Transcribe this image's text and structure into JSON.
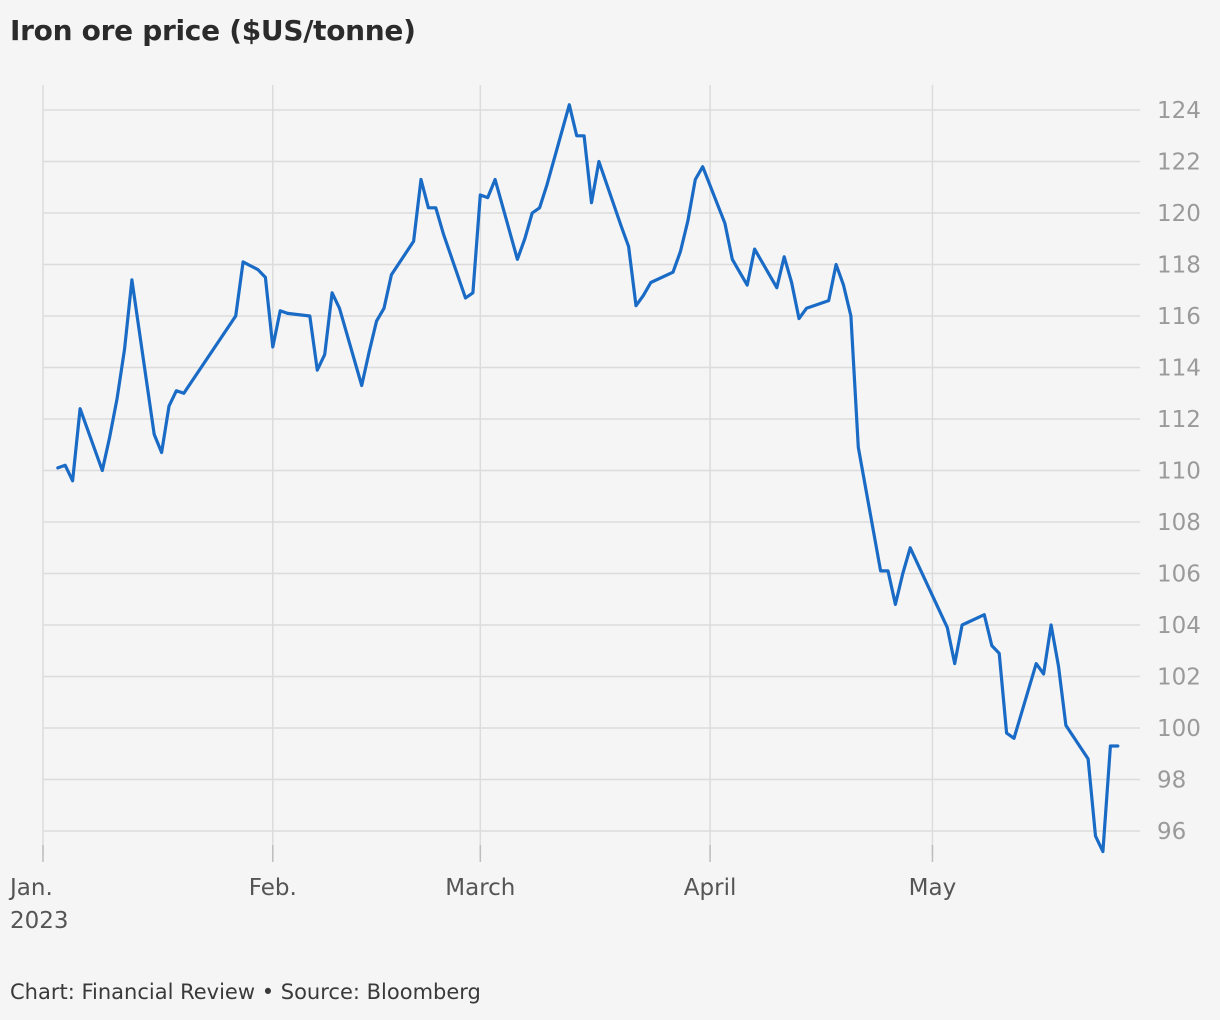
{
  "chart_data": {
    "type": "line",
    "title": "Iron ore price ($US/tonne)",
    "xlabel": "",
    "ylabel": "",
    "ylim": [
      95.2,
      125
    ],
    "yticks": [
      96,
      98,
      100,
      102,
      104,
      106,
      108,
      110,
      112,
      114,
      116,
      118,
      120,
      122,
      124
    ],
    "xlim": [
      "2023-01-01",
      "2023-05-29"
    ],
    "xticks": [
      {
        "date": "2023-01-01",
        "label": "Jan.",
        "sublabel": "2023"
      },
      {
        "date": "2023-02-01",
        "label": "Feb."
      },
      {
        "date": "2023-03-01",
        "label": "March"
      },
      {
        "date": "2023-04-01",
        "label": "April"
      },
      {
        "date": "2023-05-01",
        "label": "May"
      }
    ],
    "grid": true,
    "line_color": "#1a6bc6",
    "series": [
      {
        "x": [
          "2023-01-03",
          "2023-01-04",
          "2023-01-05",
          "2023-01-06",
          "2023-01-09",
          "2023-01-10",
          "2023-01-11",
          "2023-01-12",
          "2023-01-13",
          "2023-01-16",
          "2023-01-17",
          "2023-01-18",
          "2023-01-19",
          "2023-01-20",
          "2023-01-27",
          "2023-01-28",
          "2023-01-30",
          "2023-01-31",
          "2023-02-01",
          "2023-02-02",
          "2023-02-03",
          "2023-02-06",
          "2023-02-07",
          "2023-02-08",
          "2023-02-09",
          "2023-02-10",
          "2023-02-13",
          "2023-02-14",
          "2023-02-15",
          "2023-02-16",
          "2023-02-17",
          "2023-02-20",
          "2023-02-21",
          "2023-02-22",
          "2023-02-23",
          "2023-02-24",
          "2023-02-27",
          "2023-02-28",
          "2023-03-01",
          "2023-03-02",
          "2023-03-03",
          "2023-03-06",
          "2023-03-07",
          "2023-03-08",
          "2023-03-09",
          "2023-03-10",
          "2023-03-13",
          "2023-03-14",
          "2023-03-15",
          "2023-03-16",
          "2023-03-17",
          "2023-03-20",
          "2023-03-21",
          "2023-03-22",
          "2023-03-23",
          "2023-03-24",
          "2023-03-27",
          "2023-03-28",
          "2023-03-29",
          "2023-03-30",
          "2023-03-31",
          "2023-04-03",
          "2023-04-04",
          "2023-04-05",
          "2023-04-06",
          "2023-04-07",
          "2023-04-10",
          "2023-04-11",
          "2023-04-12",
          "2023-04-13",
          "2023-04-14",
          "2023-04-17",
          "2023-04-18",
          "2023-04-19",
          "2023-04-20",
          "2023-04-21",
          "2023-04-24",
          "2023-04-25",
          "2023-04-26",
          "2023-04-27",
          "2023-04-28",
          "2023-05-03",
          "2023-05-04",
          "2023-05-05",
          "2023-05-08",
          "2023-05-09",
          "2023-05-10",
          "2023-05-11",
          "2023-05-12",
          "2023-05-15",
          "2023-05-16",
          "2023-05-17",
          "2023-05-18",
          "2023-05-19",
          "2023-05-22",
          "2023-05-23",
          "2023-05-24",
          "2023-05-25",
          "2023-05-26"
        ],
        "values": [
          110.1,
          110.2,
          109.6,
          112.4,
          110.0,
          111.3,
          112.8,
          114.7,
          117.4,
          111.4,
          110.7,
          112.5,
          113.1,
          113.0,
          116.0,
          118.1,
          117.8,
          117.5,
          114.8,
          116.2,
          116.1,
          116.0,
          113.9,
          114.5,
          116.9,
          116.3,
          113.3,
          114.6,
          115.8,
          116.3,
          117.6,
          118.9,
          121.3,
          120.2,
          120.2,
          119.2,
          116.7,
          116.9,
          120.7,
          120.6,
          121.3,
          118.2,
          119.0,
          120.0,
          120.2,
          121.1,
          124.2,
          123.0,
          123.0,
          120.4,
          122.0,
          119.5,
          118.7,
          116.4,
          116.8,
          117.3,
          117.7,
          118.5,
          119.7,
          121.3,
          121.8,
          119.6,
          118.2,
          117.7,
          117.2,
          118.6,
          117.1,
          118.3,
          117.3,
          115.9,
          116.3,
          116.6,
          118.0,
          117.2,
          116.0,
          110.9,
          106.1,
          106.1,
          104.8,
          106.0,
          107.0,
          103.9,
          102.5,
          104.0,
          104.4,
          103.2,
          102.9,
          99.8,
          99.6,
          102.5,
          102.1,
          104.0,
          102.4,
          100.1,
          98.8,
          95.8,
          95.2,
          99.3,
          99.3
        ]
      }
    ]
  },
  "footer": {
    "text": "Chart: Financial Review • Source: Bloomberg"
  }
}
